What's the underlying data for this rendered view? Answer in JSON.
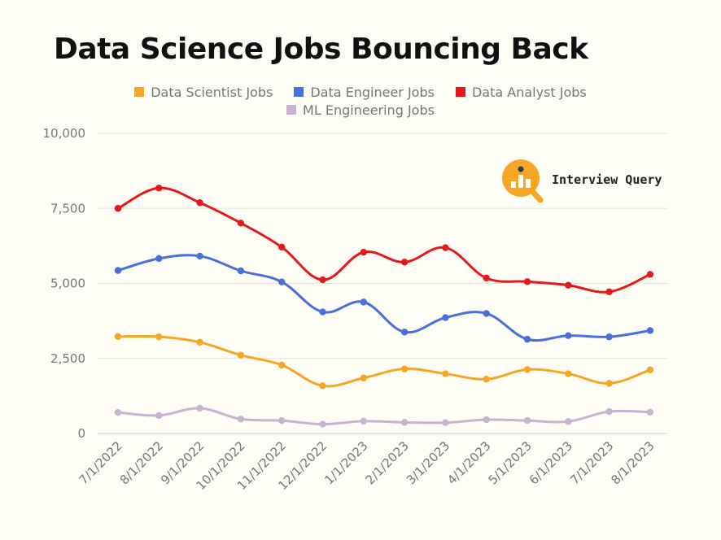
{
  "title": "Data Science Jobs Bouncing Back",
  "logo": {
    "text": "Interview Query",
    "icon": "magnifier-bar-chart-icon",
    "color": "#f5a623"
  },
  "chart_data": {
    "type": "line",
    "title": "Data Science Jobs Bouncing Back",
    "xlabel": "",
    "ylabel": "",
    "ylim": [
      0,
      10000
    ],
    "yticks": [
      "0",
      "2,500",
      "5,000",
      "7,500",
      "10,000"
    ],
    "ytick_values": [
      0,
      2500,
      5000,
      7500,
      10000
    ],
    "grid": true,
    "legend_position": "top",
    "categories": [
      "7/1/2022",
      "8/1/2022",
      "9/1/2022",
      "10/1/2022",
      "11/1/2022",
      "12/1/2022",
      "1/1/2023",
      "2/1/2023",
      "3/1/2023",
      "4/1/2023",
      "5/1/2023",
      "6/1/2023",
      "7/1/2023",
      "8/1/2023"
    ],
    "series": [
      {
        "name": "Data Scientist Jobs",
        "color": "#f5a623",
        "values": [
          3230,
          3220,
          3040,
          2610,
          2280,
          1590,
          1850,
          2150,
          1990,
          1810,
          2130,
          1990,
          1670,
          2120
        ]
      },
      {
        "name": "Data Engineer Jobs",
        "color": "#4a6fdc",
        "values": [
          5430,
          5830,
          5910,
          5420,
          5050,
          4050,
          4380,
          3380,
          3860,
          4000,
          3140,
          3260,
          3220,
          3430
        ]
      },
      {
        "name": "Data Analyst Jobs",
        "color": "#e3191c",
        "values": [
          7500,
          8180,
          7690,
          7010,
          6210,
          5120,
          6040,
          5710,
          6190,
          5180,
          5060,
          4940,
          4720,
          5300
        ]
      },
      {
        "name": "ML Engineering Jobs",
        "color": "#c9b3d0",
        "values": [
          700,
          600,
          840,
          480,
          430,
          310,
          410,
          370,
          360,
          460,
          430,
          400,
          730,
          710
        ]
      }
    ]
  }
}
